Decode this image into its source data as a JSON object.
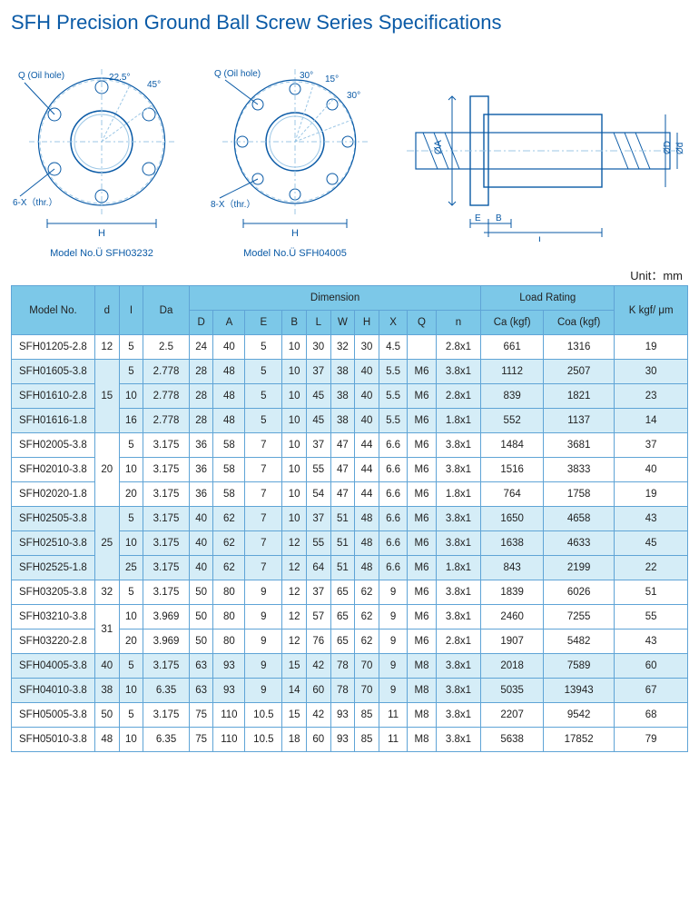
{
  "title": "SFH Precision Ground Ball Screw Series Specifications",
  "unit_label": "Unit：mm",
  "diagrams": {
    "flange6": {
      "oil_hole": "Q (Oil hole)",
      "angle1": "22.5°",
      "angle2": "45°",
      "thread": "6-X（thr.）",
      "dim_h": "H",
      "model": "Model No.Ü SFH03232"
    },
    "flange8": {
      "oil_hole": "Q (Oil hole)",
      "angle1": "30°",
      "angle2": "15°",
      "angle3": "30°",
      "thread": "8-X（thr.）",
      "dim_h": "H",
      "model": "Model No.Ü SFH04005"
    },
    "side": {
      "dim_a": "ØA",
      "dim_d": "Ød",
      "dim_D": "ØD",
      "dim_e": "E",
      "dim_b": "B",
      "dim_l": "L"
    }
  },
  "table": {
    "headers": {
      "model": "Model No.",
      "d": "d",
      "i": "I",
      "da": "Da",
      "dimension": "Dimension",
      "load": "Load Rating",
      "k": "K\nkgf/\nμm",
      "D": "D",
      "A": "A",
      "E": "E",
      "B": "B",
      "L": "L",
      "W": "W",
      "H": "H",
      "X": "X",
      "Q": "Q",
      "n": "n",
      "ca": "Ca\n(kgf)",
      "coa": "Coa\n(kgf)"
    },
    "groups": [
      {
        "shade": false,
        "d_rowspan": 1,
        "d": "12",
        "rows": [
          {
            "model": "SFH01205-2.8",
            "i": "5",
            "da": "2.5",
            "D": "24",
            "A": "40",
            "E": "5",
            "B": "10",
            "L": "30",
            "W": "32",
            "H": "30",
            "X": "4.5",
            "Q": "",
            "n": "2.8x1",
            "ca": "661",
            "coa": "1316",
            "k": "19"
          }
        ]
      },
      {
        "shade": true,
        "d_rowspan": 3,
        "d": "15",
        "rows": [
          {
            "model": "SFH01605-3.8",
            "i": "5",
            "da": "2.778",
            "D": "28",
            "A": "48",
            "E": "5",
            "B": "10",
            "L": "37",
            "W": "38",
            "H": "40",
            "X": "5.5",
            "Q": "M6",
            "n": "3.8x1",
            "ca": "1112",
            "coa": "2507",
            "k": "30"
          },
          {
            "model": "SFH01610-2.8",
            "i": "10",
            "da": "2.778",
            "D": "28",
            "A": "48",
            "E": "5",
            "B": "10",
            "L": "45",
            "W": "38",
            "H": "40",
            "X": "5.5",
            "Q": "M6",
            "n": "2.8x1",
            "ca": "839",
            "coa": "1821",
            "k": "23"
          },
          {
            "model": "SFH01616-1.8",
            "i": "16",
            "da": "2.778",
            "D": "28",
            "A": "48",
            "E": "5",
            "B": "10",
            "L": "45",
            "W": "38",
            "H": "40",
            "X": "5.5",
            "Q": "M6",
            "n": "1.8x1",
            "ca": "552",
            "coa": "1137",
            "k": "14"
          }
        ]
      },
      {
        "shade": false,
        "d_rowspan": 3,
        "d": "20",
        "rows": [
          {
            "model": "SFH02005-3.8",
            "i": "5",
            "da": "3.175",
            "D": "36",
            "A": "58",
            "E": "7",
            "B": "10",
            "L": "37",
            "W": "47",
            "H": "44",
            "X": "6.6",
            "Q": "M6",
            "n": "3.8x1",
            "ca": "1484",
            "coa": "3681",
            "k": "37"
          },
          {
            "model": "SFH02010-3.8",
            "i": "10",
            "da": "3.175",
            "D": "36",
            "A": "58",
            "E": "7",
            "B": "10",
            "L": "55",
            "W": "47",
            "H": "44",
            "X": "6.6",
            "Q": "M6",
            "n": "3.8x1",
            "ca": "1516",
            "coa": "3833",
            "k": "40"
          },
          {
            "model": "SFH02020-1.8",
            "i": "20",
            "da": "3.175",
            "D": "36",
            "A": "58",
            "E": "7",
            "B": "10",
            "L": "54",
            "W": "47",
            "H": "44",
            "X": "6.6",
            "Q": "M6",
            "n": "1.8x1",
            "ca": "764",
            "coa": "1758",
            "k": "19"
          }
        ]
      },
      {
        "shade": true,
        "d_rowspan": 3,
        "d": "25",
        "rows": [
          {
            "model": "SFH02505-3.8",
            "i": "5",
            "da": "3.175",
            "D": "40",
            "A": "62",
            "E": "7",
            "B": "10",
            "L": "37",
            "W": "51",
            "H": "48",
            "X": "6.6",
            "Q": "M6",
            "n": "3.8x1",
            "ca": "1650",
            "coa": "4658",
            "k": "43"
          },
          {
            "model": "SFH02510-3.8",
            "i": "10",
            "da": "3.175",
            "D": "40",
            "A": "62",
            "E": "7",
            "B": "12",
            "L": "55",
            "W": "51",
            "H": "48",
            "X": "6.6",
            "Q": "M6",
            "n": "3.8x1",
            "ca": "1638",
            "coa": "4633",
            "k": "45"
          },
          {
            "model": "SFH02525-1.8",
            "i": "25",
            "da": "3.175",
            "D": "40",
            "A": "62",
            "E": "7",
            "B": "12",
            "L": "64",
            "W": "51",
            "H": "48",
            "X": "6.6",
            "Q": "M6",
            "n": "1.8x1",
            "ca": "843",
            "coa": "2199",
            "k": "22"
          }
        ]
      },
      {
        "shade": false,
        "d_rowspan": 1,
        "d": "32",
        "rows": [
          {
            "model": "SFH03205-3.8",
            "i": "5",
            "da": "3.175",
            "D": "50",
            "A": "80",
            "E": "9",
            "B": "12",
            "L": "37",
            "W": "65",
            "H": "62",
            "X": "9",
            "Q": "M6",
            "n": "3.8x1",
            "ca": "1839",
            "coa": "6026",
            "k": "51"
          }
        ]
      },
      {
        "shade": false,
        "d_rowspan": 2,
        "d": "31",
        "rows": [
          {
            "model": "SFH03210-3.8",
            "i": "10",
            "da": "3.969",
            "D": "50",
            "A": "80",
            "E": "9",
            "B": "12",
            "L": "57",
            "W": "65",
            "H": "62",
            "X": "9",
            "Q": "M6",
            "n": "3.8x1",
            "ca": "2460",
            "coa": "7255",
            "k": "55"
          },
          {
            "model": "SFH03220-2.8",
            "i": "20",
            "da": "3.969",
            "D": "50",
            "A": "80",
            "E": "9",
            "B": "12",
            "L": "76",
            "W": "65",
            "H": "62",
            "X": "9",
            "Q": "M6",
            "n": "2.8x1",
            "ca": "1907",
            "coa": "5482",
            "k": "43"
          }
        ]
      },
      {
        "shade": true,
        "d_rowspan": 1,
        "d": "40",
        "rows": [
          {
            "model": "SFH04005-3.8",
            "i": "5",
            "da": "3.175",
            "D": "63",
            "A": "93",
            "E": "9",
            "B": "15",
            "L": "42",
            "W": "78",
            "H": "70",
            "X": "9",
            "Q": "M8",
            "n": "3.8x1",
            "ca": "2018",
            "coa": "7589",
            "k": "60"
          }
        ]
      },
      {
        "shade": true,
        "d_rowspan": 1,
        "d": "38",
        "rows": [
          {
            "model": "SFH04010-3.8",
            "i": "10",
            "da": "6.35",
            "D": "63",
            "A": "93",
            "E": "9",
            "B": "14",
            "L": "60",
            "W": "78",
            "H": "70",
            "X": "9",
            "Q": "M8",
            "n": "3.8x1",
            "ca": "5035",
            "coa": "13943",
            "k": "67"
          }
        ]
      },
      {
        "shade": false,
        "d_rowspan": 1,
        "d": "50",
        "rows": [
          {
            "model": "SFH05005-3.8",
            "i": "5",
            "da": "3.175",
            "D": "75",
            "A": "110",
            "E": "10.5",
            "B": "15",
            "L": "42",
            "W": "93",
            "H": "85",
            "X": "11",
            "Q": "M8",
            "n": "3.8x1",
            "ca": "2207",
            "coa": "9542",
            "k": "68"
          }
        ]
      },
      {
        "shade": false,
        "d_rowspan": 1,
        "d": "48",
        "rows": [
          {
            "model": "SFH05010-3.8",
            "i": "10",
            "da": "6.35",
            "D": "75",
            "A": "110",
            "E": "10.5",
            "B": "18",
            "L": "60",
            "W": "93",
            "H": "85",
            "X": "11",
            "Q": "M8",
            "n": "3.8x1",
            "ca": "5638",
            "coa": "17852",
            "k": "79"
          }
        ]
      }
    ]
  },
  "colors": {
    "stroke": "#0a5aa6",
    "light": "#9cc7e6",
    "header_bg": "#7cc8e8",
    "shade_bg": "#d5edf7",
    "border": "#5fa4d6"
  }
}
